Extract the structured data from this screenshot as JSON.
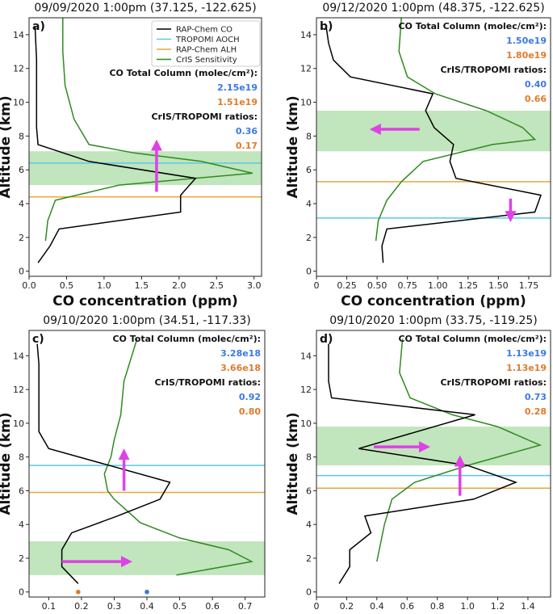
{
  "colors": {
    "co": "#000000",
    "aoch": "#5bc8e8",
    "alh": "#e8a838",
    "sens": "#2e8b1f",
    "band": "#b6e0b0",
    "arrow": "#e040e8",
    "blue": "#3b78e7",
    "orange": "#e07a2c"
  },
  "legend": {
    "co": "RAP-Chem CO",
    "aoch": "TROPOMI AOCH",
    "alh": "RAP-Chem ALH",
    "sens": "CrIS Sensitivity"
  },
  "stats_labels": {
    "column_title": "CO Total Column (molec/cm²):",
    "ratios_title": "CrIS/TROPOMI ratios:"
  },
  "chart_data": [
    {
      "id": "a",
      "type": "line",
      "letter": "a)",
      "title": "09/09/2020 1:00pm (37.125, -122.625)",
      "xlabel": "CO concentration (ppm)",
      "ylabel": "Altitude (km)",
      "xlim": [
        0,
        3.1
      ],
      "ylim": [
        -0.3,
        15
      ],
      "xticks": [
        0,
        0.5,
        1,
        1.5,
        2,
        2.5,
        3
      ],
      "xtick_labels": [
        "0.0",
        "0.5",
        "1.0",
        "1.5",
        "2.0",
        "2.5",
        "3.0"
      ],
      "yticks": [
        0,
        2,
        4,
        6,
        8,
        10,
        12,
        14
      ],
      "ytick_labels": [
        "0",
        "2",
        "4",
        "6",
        "8",
        "10",
        "12",
        "14"
      ],
      "band": [
        5.1,
        7.1
      ],
      "aoch": 6.4,
      "alh": 4.4,
      "co_profile": [
        [
          0.12,
          0.5
        ],
        [
          0.28,
          1.5
        ],
        [
          0.4,
          2.5
        ],
        [
          2.02,
          3.5
        ],
        [
          2.02,
          4.5
        ],
        [
          2.22,
          5.5
        ],
        [
          0.8,
          6.5
        ],
        [
          0.12,
          7.5
        ],
        [
          0.1,
          8.5
        ],
        [
          0.1,
          10.5
        ],
        [
          0.1,
          12.5
        ],
        [
          0.08,
          14.5
        ]
      ],
      "sensitivity": [
        [
          0.22,
          1.8
        ],
        [
          0.25,
          3
        ],
        [
          0.35,
          4.2
        ],
        [
          1.2,
          5.1
        ],
        [
          2.98,
          5.8
        ],
        [
          2.3,
          6.5
        ],
        [
          1.4,
          7
        ],
        [
          0.8,
          7.5
        ],
        [
          0.6,
          9
        ],
        [
          0.48,
          11
        ],
        [
          0.45,
          13
        ],
        [
          0.45,
          15
        ]
      ],
      "arrows": [
        {
          "x0": 1.7,
          "y0": 4.7,
          "x1": 1.7,
          "y1": 7.5
        }
      ],
      "column_values": [
        "2.15e19",
        "1.51e19"
      ],
      "ratio_values": [
        "0.36",
        "0.17"
      ],
      "show_legend": true,
      "points": []
    },
    {
      "id": "b",
      "type": "line",
      "letter": "b)",
      "title": "09/12/2020 1:00pm (48.375, -122.625)",
      "xlabel": "CO concentration (ppm)",
      "ylabel": "Altitude (km)",
      "xlim": [
        0,
        1.93
      ],
      "ylim": [
        -0.3,
        15
      ],
      "xticks": [
        0,
        0.25,
        0.5,
        0.75,
        1,
        1.25,
        1.5,
        1.75
      ],
      "xtick_labels": [
        "0",
        "0.25",
        "0.50",
        "0.75",
        "1.00",
        "1.25",
        "1.50",
        "1.75"
      ],
      "yticks": [
        0,
        2,
        4,
        6,
        8,
        10,
        12,
        14
      ],
      "ytick_labels": [
        "0",
        "2",
        "4",
        "6",
        "8",
        "10",
        "12",
        "14"
      ],
      "band": [
        7.1,
        9.5
      ],
      "aoch": 3.15,
      "alh": 5.3,
      "co_profile": [
        [
          0.55,
          0.5
        ],
        [
          0.54,
          1.5
        ],
        [
          0.58,
          2.5
        ],
        [
          1.8,
          3.5
        ],
        [
          1.85,
          4.5
        ],
        [
          1.15,
          5.5
        ],
        [
          1.1,
          6.5
        ],
        [
          1.13,
          7.5
        ],
        [
          0.97,
          8.5
        ],
        [
          0.9,
          9.5
        ],
        [
          0.96,
          10.5
        ],
        [
          0.28,
          11.5
        ],
        [
          0.14,
          12.5
        ],
        [
          0.1,
          13.5
        ],
        [
          0.08,
          14.5
        ]
      ],
      "sensitivity": [
        [
          0.49,
          1.8
        ],
        [
          0.51,
          3
        ],
        [
          0.58,
          4.2
        ],
        [
          0.7,
          5.3
        ],
        [
          0.88,
          6.5
        ],
        [
          1.45,
          7.5
        ],
        [
          1.8,
          7.8
        ],
        [
          1.7,
          8.5
        ],
        [
          1.4,
          9.5
        ],
        [
          0.98,
          10.5
        ],
        [
          0.75,
          11.5
        ],
        [
          0.68,
          13
        ],
        [
          0.7,
          15
        ]
      ],
      "arrows": [
        {
          "x0": 0.85,
          "y0": 8.4,
          "x1": 0.48,
          "y1": 8.4
        },
        {
          "x0": 1.6,
          "y0": 4.3,
          "x1": 1.6,
          "y1": 3.2
        }
      ],
      "column_values": [
        "1.50e19",
        "1.80e19"
      ],
      "ratio_values": [
        "0.40",
        "0.66"
      ],
      "show_legend": false,
      "points": []
    },
    {
      "id": "c",
      "type": "line",
      "letter": "c)",
      "title": "09/10/2020 1:00pm (34.51, -117.33)",
      "xlabel": "CO concentration (ppm)",
      "ylabel": "Altitude (km)",
      "xlim": [
        0.04,
        0.76
      ],
      "ylim": [
        -0.3,
        15.5
      ],
      "xticks": [
        0.1,
        0.2,
        0.3,
        0.4,
        0.5,
        0.6,
        0.7
      ],
      "xtick_labels": [
        "0.1",
        "0.2",
        "0.3",
        "0.4",
        "0.5",
        "0.6",
        "0.7"
      ],
      "yticks": [
        0,
        2,
        4,
        6,
        8,
        10,
        12,
        14
      ],
      "ytick_labels": [
        "0",
        "2",
        "4",
        "6",
        "8",
        "10",
        "12",
        "14"
      ],
      "band": [
        1.0,
        3.0
      ],
      "aoch": 7.5,
      "alh": 5.9,
      "co_profile": [
        [
          0.19,
          0.5
        ],
        [
          0.14,
          1.5
        ],
        [
          0.14,
          2.5
        ],
        [
          0.17,
          3.5
        ],
        [
          0.31,
          4.5
        ],
        [
          0.44,
          5.5
        ],
        [
          0.47,
          6.5
        ],
        [
          0.1,
          8.5
        ],
        [
          0.07,
          9.5
        ],
        [
          0.07,
          11.5
        ],
        [
          0.07,
          13.5
        ],
        [
          0.065,
          14.7
        ]
      ],
      "sensitivity": [
        [
          0.49,
          1
        ],
        [
          0.72,
          1.8
        ],
        [
          0.65,
          2.5
        ],
        [
          0.5,
          3.2
        ],
        [
          0.38,
          4.1
        ],
        [
          0.3,
          5.5
        ],
        [
          0.28,
          6
        ],
        [
          0.27,
          7
        ],
        [
          0.29,
          8
        ],
        [
          0.3,
          9
        ],
        [
          0.32,
          10.5
        ],
        [
          0.33,
          12.5
        ],
        [
          0.37,
          15
        ]
      ],
      "arrows": [
        {
          "x0": 0.33,
          "y0": 6.0,
          "x1": 0.33,
          "y1": 8.2
        },
        {
          "x0": 0.14,
          "y0": 1.8,
          "x1": 0.34,
          "y1": 1.8
        }
      ],
      "column_values": [
        "3.28e18",
        "3.66e18"
      ],
      "ratio_values": [
        "0.92",
        "0.80"
      ],
      "show_legend": false,
      "points": [
        {
          "x": 0.19,
          "y": 0,
          "color": "orange"
        },
        {
          "x": 0.4,
          "y": 0,
          "color": "blue"
        }
      ]
    },
    {
      "id": "d",
      "type": "line",
      "letter": "d)",
      "title": "09/10/2020 1:00pm (33.75, -119.25)",
      "xlabel": "CO concentration (ppm)",
      "ylabel": "Altitude (km)",
      "xlim": [
        0,
        1.55
      ],
      "ylim": [
        -0.3,
        15.5
      ],
      "xticks": [
        0,
        0.2,
        0.4,
        0.6,
        0.8,
        1,
        1.2,
        1.4
      ],
      "xtick_labels": [
        "0",
        "0.2",
        "0.4",
        "0.6",
        "0.8",
        "1.0",
        "1.2",
        "1.4"
      ],
      "yticks": [
        0,
        2,
        4,
        6,
        8,
        10,
        12,
        14
      ],
      "ytick_labels": [
        "0",
        "2",
        "4",
        "6",
        "8",
        "10",
        "12",
        "14"
      ],
      "band": [
        7.5,
        9.8
      ],
      "aoch": 6.9,
      "alh": 6.15,
      "co_profile": [
        [
          0.15,
          0.5
        ],
        [
          0.22,
          1.5
        ],
        [
          0.22,
          2.5
        ],
        [
          0.36,
          3.5
        ],
        [
          0.32,
          4.5
        ],
        [
          1.04,
          5.5
        ],
        [
          1.32,
          6.5
        ],
        [
          1.0,
          7.5
        ],
        [
          0.28,
          8.5
        ],
        [
          1.05,
          10.5
        ],
        [
          0.1,
          11.5
        ],
        [
          0.08,
          12.5
        ],
        [
          0.08,
          14.7
        ]
      ],
      "sensitivity": [
        [
          0.4,
          1.8
        ],
        [
          0.45,
          4
        ],
        [
          0.5,
          5.5
        ],
        [
          0.65,
          6.5
        ],
        [
          1.0,
          7.5
        ],
        [
          1.48,
          8.7
        ],
        [
          1.2,
          9.8
        ],
        [
          0.9,
          10.5
        ],
        [
          0.62,
          11.5
        ],
        [
          0.55,
          13
        ],
        [
          0.57,
          15
        ]
      ],
      "arrows": [
        {
          "x0": 0.95,
          "y0": 5.7,
          "x1": 0.95,
          "y1": 7.8
        },
        {
          "x0": 0.38,
          "y0": 8.6,
          "x1": 0.72,
          "y1": 8.6
        }
      ],
      "column_values": [
        "1.13e19",
        "1.13e19"
      ],
      "ratio_values": [
        "0.73",
        "0.28"
      ],
      "show_legend": false,
      "points": []
    }
  ]
}
